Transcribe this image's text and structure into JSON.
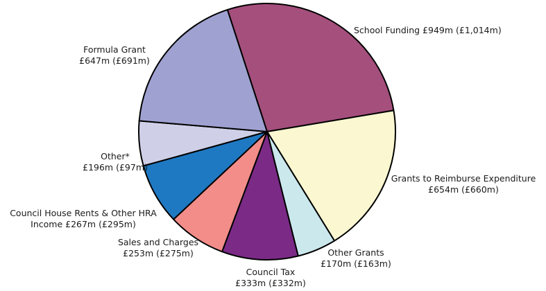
{
  "chart_data": {
    "type": "pie",
    "title": "",
    "slices": [
      {
        "label_lines": [
          "School Funding  £949m (£1,014m)"
        ],
        "value": 949,
        "previous": 1014,
        "color": "#a54f7d"
      },
      {
        "label_lines": [
          "Grants to Reimburse Expenditure",
          "£654m (£660m)"
        ],
        "value": 654,
        "previous": 660,
        "color": "#fbf8d1"
      },
      {
        "label_lines": [
          "Other Grants",
          "£170m (£163m)"
        ],
        "value": 170,
        "previous": 163,
        "color": "#cbe8ed"
      },
      {
        "label_lines": [
          "Council Tax",
          "£333m (£332m)"
        ],
        "value": 333,
        "previous": 332,
        "color": "#7b2a86"
      },
      {
        "label_lines": [
          "Sales and Charges",
          "£253m (£275m)"
        ],
        "value": 253,
        "previous": 275,
        "color": "#f28d8a"
      },
      {
        "label_lines": [
          "Council House Rents & Other HRA",
          "Income £267m (£295m)"
        ],
        "value": 267,
        "previous": 295,
        "color": "#1f79c2"
      },
      {
        "label_lines": [
          "Other*",
          "£196m (£97m)"
        ],
        "value": 196,
        "previous": 97,
        "color": "#cfd0e8"
      },
      {
        "label_lines": [
          "Formula Grant",
          "£647m (£691m)"
        ],
        "value": 647,
        "previous": 691,
        "color": "#9fa2d1"
      }
    ]
  }
}
